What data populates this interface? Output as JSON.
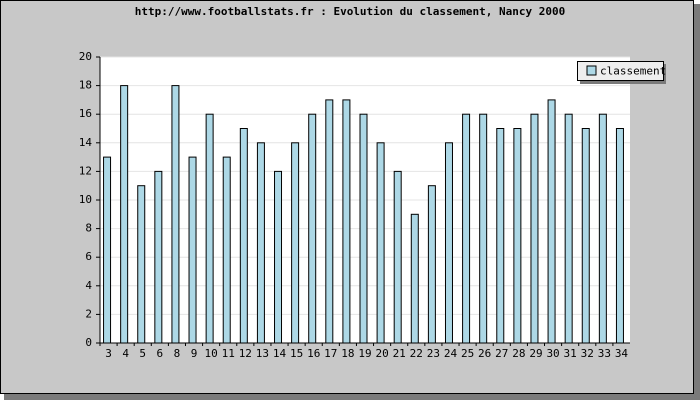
{
  "chart_data": {
    "type": "bar",
    "title": "http://www.footballstats.fr : Evolution du classement, Nancy 2000",
    "categories": [
      "3",
      "4",
      "5",
      "6",
      "8",
      "9",
      "10",
      "11",
      "12",
      "13",
      "14",
      "15",
      "16",
      "17",
      "18",
      "19",
      "20",
      "21",
      "22",
      "23",
      "24",
      "25",
      "26",
      "27",
      "28",
      "29",
      "30",
      "31",
      "32",
      "33",
      "34"
    ],
    "series": [
      {
        "name": "classement",
        "color": "#add8e6",
        "values": [
          13,
          18,
          11,
          12,
          18,
          13,
          16,
          13,
          15,
          14,
          12,
          14,
          16,
          17,
          17,
          16,
          14,
          12,
          9,
          11,
          14,
          16,
          16,
          15,
          15,
          16,
          17,
          16,
          15,
          16,
          15
        ]
      }
    ],
    "ylim": [
      0,
      20
    ],
    "yticks": [
      0,
      2,
      4,
      6,
      8,
      10,
      12,
      14,
      16,
      18,
      20
    ],
    "grid": true,
    "legend": "top-right"
  }
}
